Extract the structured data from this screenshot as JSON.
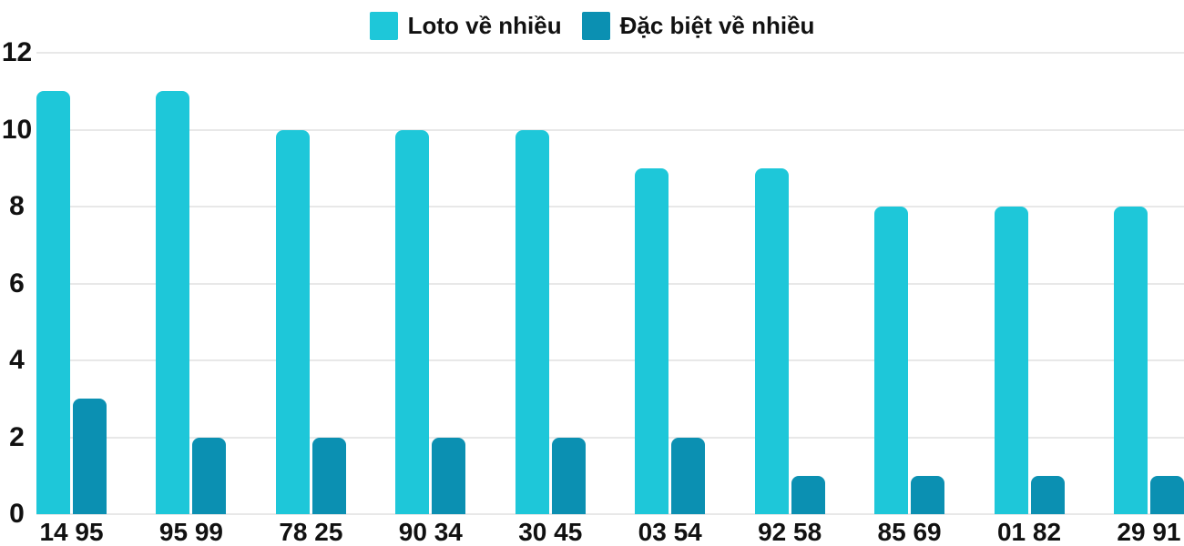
{
  "chart_data": {
    "type": "bar",
    "title": "",
    "categories": [
      "14 95",
      "95 99",
      "78 25",
      "90 34",
      "30 45",
      "03 54",
      "92 58",
      "85 69",
      "01 82",
      "29 91"
    ],
    "series": [
      {
        "name": "Loto về nhiều",
        "color": "#1ec7d9",
        "values": [
          11,
          11,
          10,
          10,
          10,
          9,
          9,
          8,
          8,
          8
        ]
      },
      {
        "name": "Đặc biệt về nhiều",
        "color": "#0b90b2",
        "values": [
          3,
          2,
          2,
          2,
          2,
          2,
          1,
          1,
          1,
          1
        ]
      }
    ],
    "xlabel": "",
    "ylabel": "",
    "ylim": [
      0,
      12
    ],
    "yticks": [
      0,
      2,
      4,
      6,
      8,
      10,
      12
    ],
    "grid": true,
    "gridline_color": "#e8e8e8",
    "text_color": "#111111",
    "background_color": "#ffffff",
    "legend_position": "top-center"
  }
}
